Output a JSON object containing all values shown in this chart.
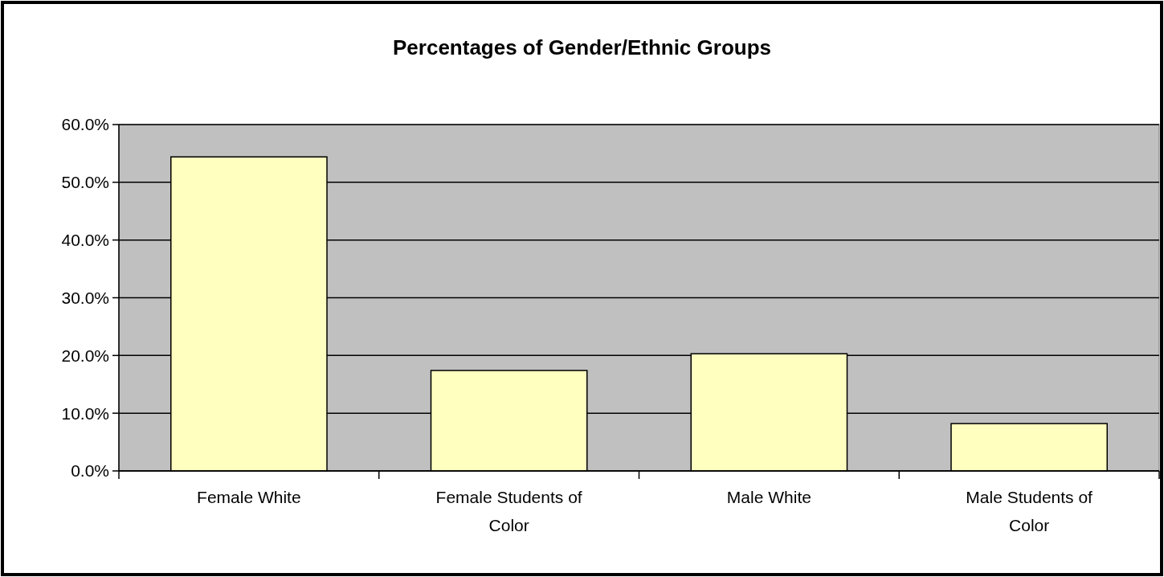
{
  "chart_data": {
    "type": "bar",
    "title": "Percentages of Gender/Ethnic Groups",
    "categories": [
      "Female White",
      "Female Students of Color",
      "Male White",
      "Male Students of Color"
    ],
    "values": [
      54.4,
      17.4,
      20.3,
      8.2
    ],
    "color": "#ffffc0",
    "ylim": [
      0,
      60
    ],
    "yticks": [
      {
        "value": 0,
        "label": "0.0%"
      },
      {
        "value": 10,
        "label": "10.0%"
      },
      {
        "value": 20,
        "label": "20.0%"
      },
      {
        "value": 30,
        "label": "30.0%"
      },
      {
        "value": 40,
        "label": "40.0%"
      },
      {
        "value": 50,
        "label": "50.0%"
      },
      {
        "value": 60,
        "label": "60.0%"
      }
    ],
    "grid": "y"
  }
}
